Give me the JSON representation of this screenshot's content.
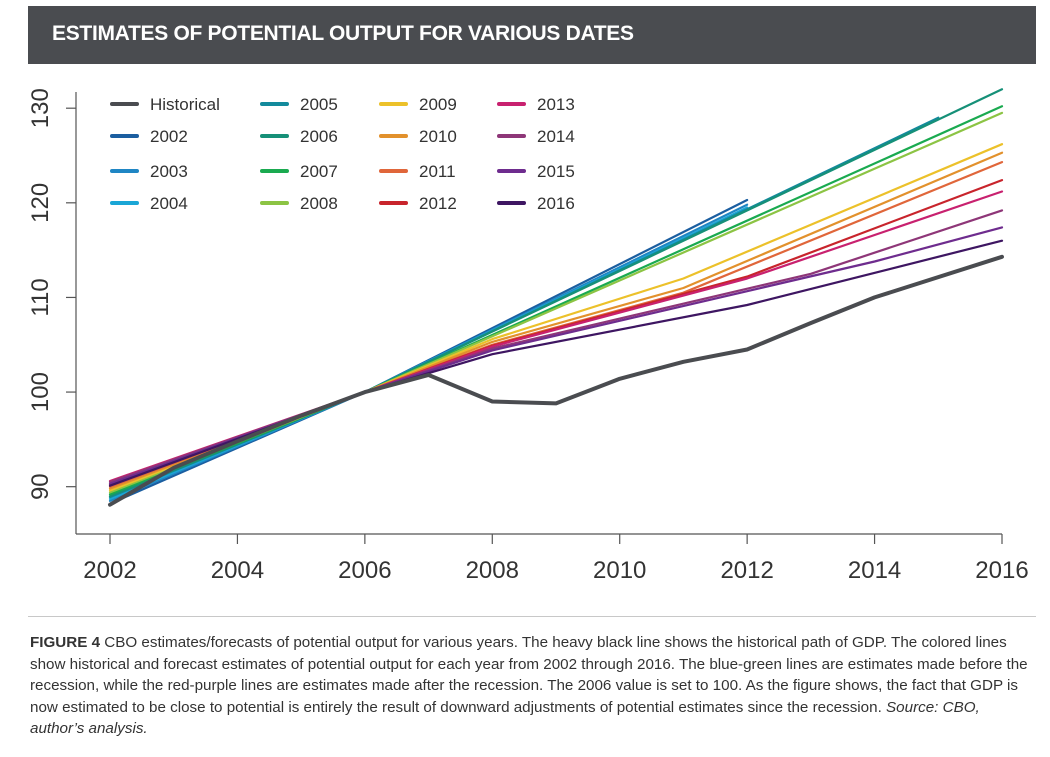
{
  "header": {
    "title": "ESTIMATES OF POTENTIAL OUTPUT FOR VARIOUS DATES"
  },
  "caption": {
    "figure_label": "FIGURE 4",
    "text": "CBO estimates/forecasts of potential output for various years. The heavy black line shows the historical path of GDP. The colored lines show historical and forecast estimates of potential output for each year from 2002 through 2016. The blue-green lines are estimates made before the recession, while the red-purple lines are estimates made after the recession. The 2006 value is set to 100. As the figure shows, the fact that GDP is now estimated to be close to potential is entirely the result of downward adjustments of potential estimates since the recession.",
    "source": "Source: CBO, author’s analysis."
  },
  "chart_data": {
    "type": "line",
    "title": "ESTIMATES OF POTENTIAL OUTPUT FOR VARIOUS DATES",
    "xlabel": "",
    "ylabel": "",
    "xlim": [
      2002,
      2016
    ],
    "ylim": [
      85,
      131.5
    ],
    "x_ticks": [
      2002,
      2004,
      2006,
      2008,
      2010,
      2012,
      2014,
      2016
    ],
    "y_ticks": [
      90,
      100,
      110,
      120,
      130
    ],
    "grid": false,
    "legend": "top-left",
    "series": [
      {
        "name": "2002",
        "color": "#1b5ea0",
        "points": [
          [
            2002,
            88.2
          ],
          [
            2006,
            100
          ],
          [
            2012,
            120.3
          ]
        ]
      },
      {
        "name": "2003",
        "color": "#1f86c4",
        "points": [
          [
            2002,
            88.5
          ],
          [
            2006,
            100
          ],
          [
            2012,
            119.8
          ]
        ]
      },
      {
        "name": "2004",
        "color": "#1aa6d6",
        "points": [
          [
            2002,
            88.7
          ],
          [
            2006,
            100
          ],
          [
            2012,
            119.5
          ]
        ]
      },
      {
        "name": "2005",
        "color": "#138a9c",
        "points": [
          [
            2002,
            88.9
          ],
          [
            2006,
            100
          ],
          [
            2015,
            129.0
          ]
        ]
      },
      {
        "name": "2006",
        "color": "#169078",
        "points": [
          [
            2002,
            89.0
          ],
          [
            2006,
            100
          ],
          [
            2016,
            132.0
          ]
        ]
      },
      {
        "name": "2007",
        "color": "#1aaa50",
        "points": [
          [
            2002,
            89.2
          ],
          [
            2006,
            100
          ],
          [
            2016,
            130.2
          ]
        ]
      },
      {
        "name": "2008",
        "color": "#8cc444",
        "points": [
          [
            2002,
            89.4
          ],
          [
            2006,
            100
          ],
          [
            2016,
            129.5
          ]
        ]
      },
      {
        "name": "2009",
        "color": "#ecc12a",
        "points": [
          [
            2002,
            89.6
          ],
          [
            2006,
            100
          ],
          [
            2008,
            105.6
          ],
          [
            2011,
            112.0
          ],
          [
            2016,
            126.2
          ]
        ]
      },
      {
        "name": "2010",
        "color": "#e2912c",
        "points": [
          [
            2002,
            89.8
          ],
          [
            2006,
            100
          ],
          [
            2008,
            105.3
          ],
          [
            2011,
            111.0
          ],
          [
            2016,
            125.3
          ]
        ]
      },
      {
        "name": "2011",
        "color": "#e0663a",
        "points": [
          [
            2002,
            90.0
          ],
          [
            2006,
            100
          ],
          [
            2008,
            105.0
          ],
          [
            2011,
            110.5
          ],
          [
            2016,
            124.3
          ]
        ]
      },
      {
        "name": "2012",
        "color": "#c8242c",
        "points": [
          [
            2002,
            90.2
          ],
          [
            2006,
            100
          ],
          [
            2008,
            104.9
          ],
          [
            2012,
            112.2
          ],
          [
            2016,
            122.4
          ]
        ]
      },
      {
        "name": "2013",
        "color": "#c8216f",
        "points": [
          [
            2002,
            90.6
          ],
          [
            2006,
            100
          ],
          [
            2008,
            104.8
          ],
          [
            2012,
            112.0
          ],
          [
            2016,
            121.2
          ]
        ]
      },
      {
        "name": "2014",
        "color": "#8e3678",
        "points": [
          [
            2002,
            90.5
          ],
          [
            2006,
            100
          ],
          [
            2008,
            104.6
          ],
          [
            2013,
            112.5
          ],
          [
            2016,
            119.2
          ]
        ]
      },
      {
        "name": "2015",
        "color": "#6e2c8e",
        "points": [
          [
            2002,
            90.3
          ],
          [
            2006,
            100
          ],
          [
            2008,
            104.4
          ],
          [
            2014,
            113.8
          ],
          [
            2016,
            117.4
          ]
        ]
      },
      {
        "name": "2016",
        "color": "#3e1662",
        "points": [
          [
            2002,
            90.1
          ],
          [
            2006,
            100
          ],
          [
            2008,
            104.0
          ],
          [
            2012,
            109.2
          ],
          [
            2016,
            116.0
          ]
        ]
      },
      {
        "name": "Historical",
        "color": "#4a4c50",
        "heavy": true,
        "points": [
          [
            2002,
            88.1
          ],
          [
            2003,
            92.0
          ],
          [
            2004,
            94.8
          ],
          [
            2005,
            97.5
          ],
          [
            2006,
            100.0
          ],
          [
            2007,
            101.8
          ],
          [
            2008,
            99.0
          ],
          [
            2009,
            98.8
          ],
          [
            2010,
            101.4
          ],
          [
            2011,
            103.2
          ],
          [
            2012,
            104.5
          ],
          [
            2013,
            107.3
          ],
          [
            2014,
            110.0
          ],
          [
            2016,
            114.3
          ]
        ]
      }
    ],
    "legend_columns": [
      [
        "Historical",
        "2002",
        "2003",
        "2004"
      ],
      [
        "2005",
        "2006",
        "2007",
        "2008"
      ],
      [
        "2009",
        "2010",
        "2011",
        "2012"
      ],
      [
        "2013",
        "2014",
        "2015",
        "2016"
      ]
    ]
  }
}
